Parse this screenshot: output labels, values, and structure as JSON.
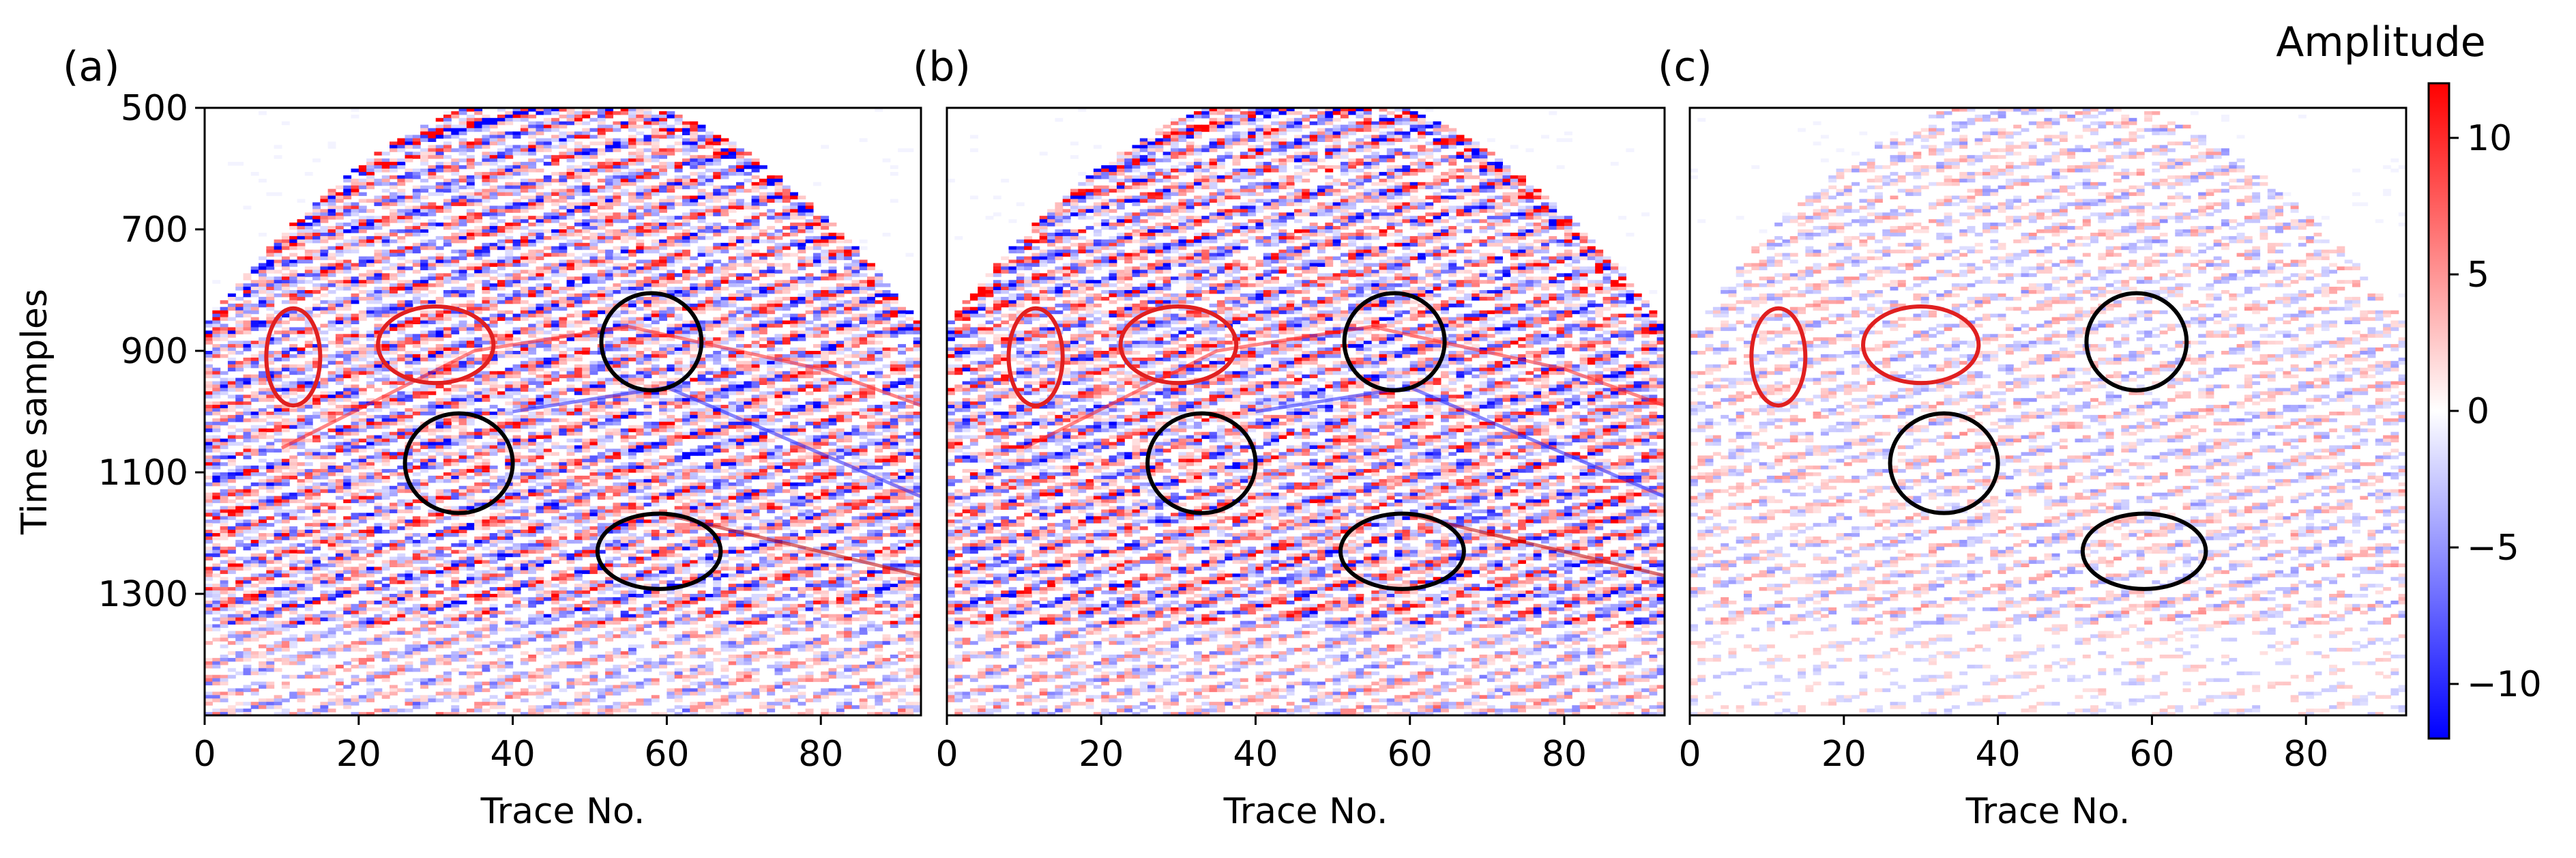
{
  "chart_data": [
    {
      "type": "heatmap",
      "panel_label": "(a)",
      "xlabel": "Trace No.",
      "ylabel": "Time samples",
      "xlim": [
        0,
        93
      ],
      "ylim": [
        1500,
        500
      ],
      "xticks": [
        0,
        20,
        40,
        60,
        80
      ],
      "yticks": [
        500,
        700,
        900,
        1100,
        1300
      ],
      "ellipses": [
        {
          "color": "red",
          "cx": 11.5,
          "cy": 910,
          "rx": 3.5,
          "ry": 80
        },
        {
          "color": "red",
          "cx": 30,
          "cy": 890,
          "rx": 7.5,
          "ry": 63
        },
        {
          "color": "black",
          "cx": 58,
          "cy": 885,
          "rx": 6.5,
          "ry": 80
        },
        {
          "color": "black",
          "cx": 33,
          "cy": 1085,
          "rx": 7,
          "ry": 82
        },
        {
          "color": "black",
          "cx": 59,
          "cy": 1230,
          "rx": 8,
          "ry": 62
        }
      ]
    },
    {
      "type": "heatmap",
      "panel_label": "(b)",
      "xlabel": "Trace No.",
      "ylabel": "",
      "xlim": [
        0,
        93
      ],
      "ylim": [
        1500,
        500
      ],
      "xticks": [
        0,
        20,
        40,
        60,
        80
      ],
      "yticks": [],
      "ellipses": [
        {
          "color": "red",
          "cx": 11.5,
          "cy": 910,
          "rx": 3.5,
          "ry": 80
        },
        {
          "color": "red",
          "cx": 30,
          "cy": 890,
          "rx": 7.5,
          "ry": 63
        },
        {
          "color": "black",
          "cx": 58,
          "cy": 885,
          "rx": 6.5,
          "ry": 80
        },
        {
          "color": "black",
          "cx": 33,
          "cy": 1085,
          "rx": 7,
          "ry": 82
        },
        {
          "color": "black",
          "cx": 59,
          "cy": 1230,
          "rx": 8,
          "ry": 62
        }
      ]
    },
    {
      "type": "heatmap",
      "panel_label": "(c)",
      "xlabel": "Trace No.",
      "ylabel": "",
      "xlim": [
        0,
        93
      ],
      "ylim": [
        1500,
        500
      ],
      "xticks": [
        0,
        20,
        40,
        60,
        80
      ],
      "yticks": [],
      "ellipses": [
        {
          "color": "red",
          "cx": 11.5,
          "cy": 910,
          "rx": 3.5,
          "ry": 80
        },
        {
          "color": "red",
          "cx": 30,
          "cy": 890,
          "rx": 7.5,
          "ry": 63
        },
        {
          "color": "black",
          "cx": 58,
          "cy": 885,
          "rx": 6.5,
          "ry": 80
        },
        {
          "color": "black",
          "cx": 33,
          "cy": 1085,
          "rx": 7,
          "ry": 82
        },
        {
          "color": "black",
          "cx": 59,
          "cy": 1230,
          "rx": 8,
          "ry": 62
        }
      ]
    }
  ],
  "colorbar": {
    "label": "Amplitude",
    "range": [
      -12,
      12
    ],
    "ticks": [
      10,
      5,
      0,
      -5,
      -10
    ],
    "tick_labels": [
      "10",
      "5",
      "0",
      "−5",
      "−10"
    ],
    "colormap": "bwr",
    "color_low": "#0000ff",
    "color_mid": "#ffffff",
    "color_high": "#ff0000"
  },
  "colors": {
    "positive": "#ff0000",
    "negative": "#0000ff",
    "ellipse_red": "#e02020",
    "ellipse_black": "#000000"
  }
}
